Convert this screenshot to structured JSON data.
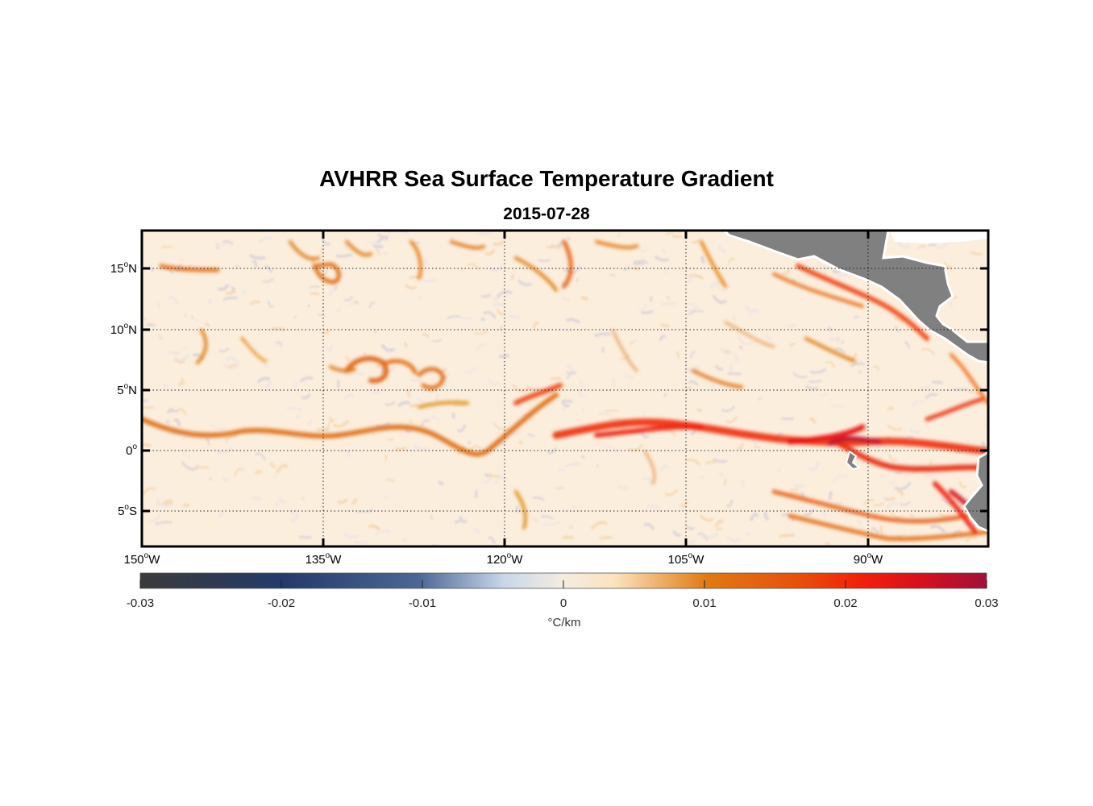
{
  "title": "AVHRR Sea Surface Temperature Gradient",
  "subtitle": "2015-07-28",
  "map": {
    "lon_range": [
      "150°W",
      "80°W"
    ],
    "lat_range": [
      "8°S",
      "18°N"
    ],
    "grid": "dotted",
    "land_color": "#808080",
    "coast_color": "#ffffff"
  },
  "lat_labels": [
    {
      "deg": "15",
      "sup": "o",
      "hem": "N"
    },
    {
      "deg": "10",
      "sup": "o",
      "hem": "N"
    },
    {
      "deg": "5",
      "sup": "o",
      "hem": "N"
    },
    {
      "deg": "0",
      "sup": "o",
      "hem": ""
    },
    {
      "deg": "5",
      "sup": "o",
      "hem": "S"
    }
  ],
  "lon_labels": [
    {
      "deg": "150",
      "sup": "o",
      "hem": "W"
    },
    {
      "deg": "135",
      "sup": "o",
      "hem": "W"
    },
    {
      "deg": "120",
      "sup": "o",
      "hem": "W"
    },
    {
      "deg": "105",
      "sup": "o",
      "hem": "W"
    },
    {
      "deg": "90",
      "sup": "o",
      "hem": "W"
    }
  ],
  "colorbar": {
    "ticks": [
      "-0.03",
      "-0.02",
      "-0.01",
      "0",
      "0.01",
      "0.02",
      "0.03"
    ],
    "unit": "°C/km",
    "range": [
      -0.03,
      0.03
    ],
    "colors": [
      "#3a3a3a",
      "#233a6a",
      "#c9d7ea",
      "#fbe8cf",
      "#e07a10",
      "#f2300a",
      "#a01038"
    ]
  }
}
